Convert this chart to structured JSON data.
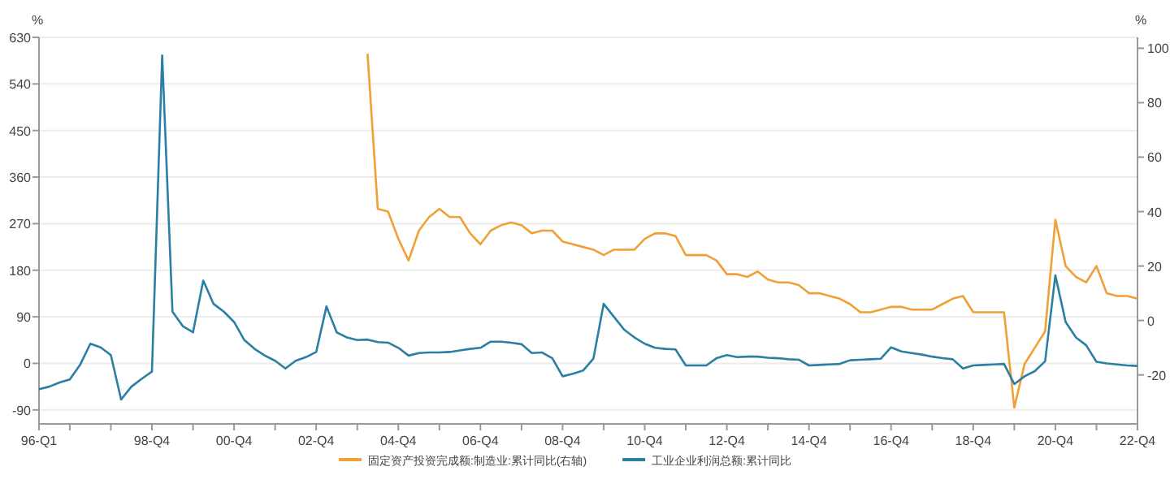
{
  "chart_data": {
    "type": "line",
    "categories": [
      "96-Q1",
      null,
      null,
      null,
      null,
      null,
      null,
      null,
      null,
      null,
      null,
      "98-Q4",
      null,
      null,
      null,
      null,
      null,
      null,
      null,
      "00-Q4",
      null,
      null,
      null,
      null,
      null,
      null,
      null,
      "02-Q4",
      null,
      null,
      null,
      null,
      null,
      null,
      null,
      "04-Q4",
      null,
      null,
      null,
      null,
      null,
      null,
      null,
      "06-Q4",
      null,
      null,
      null,
      null,
      null,
      null,
      null,
      "08-Q4",
      null,
      null,
      null,
      null,
      null,
      null,
      null,
      "10-Q4",
      null,
      null,
      null,
      null,
      null,
      null,
      null,
      "12-Q4",
      null,
      null,
      null,
      null,
      null,
      null,
      null,
      "14-Q4",
      null,
      null,
      null,
      null,
      null,
      null,
      null,
      "16-Q4",
      null,
      null,
      null,
      null,
      null,
      null,
      null,
      "18-Q4",
      null,
      null,
      null,
      null,
      null,
      null,
      null,
      "20-Q4",
      null,
      null,
      null,
      null,
      null,
      null,
      null,
      "22-Q4"
    ],
    "series": [
      {
        "name": "固定资产投资完成额:制造业:累计同比(右轴)",
        "color": "#f0a035",
        "axis": "y2",
        "values": [
          null,
          null,
          null,
          null,
          null,
          null,
          null,
          null,
          null,
          null,
          null,
          null,
          null,
          null,
          null,
          null,
          null,
          null,
          null,
          null,
          null,
          null,
          null,
          null,
          null,
          null,
          null,
          null,
          null,
          null,
          null,
          null,
          98,
          41,
          40,
          30,
          22,
          33,
          38,
          41,
          38,
          38,
          32,
          28,
          33,
          35,
          36,
          35,
          32,
          33,
          33,
          29,
          28,
          27,
          26,
          24,
          26,
          26,
          26,
          30,
          32,
          32,
          31,
          24,
          24,
          24,
          22,
          17,
          17,
          16,
          18,
          15,
          14,
          14,
          13,
          10,
          10,
          9,
          8,
          6,
          3,
          3,
          4,
          5,
          5,
          4,
          4,
          4,
          6,
          8,
          9,
          3,
          3,
          3,
          3,
          -32,
          -16,
          -10,
          -4,
          37,
          20,
          16,
          14,
          20,
          10,
          9,
          9,
          8
        ]
      },
      {
        "name": "工业企业利润总额:累计同比",
        "color": "#2b7fa3",
        "values": [
          -50,
          -45,
          -37,
          -31,
          -3,
          38,
          31,
          16,
          -70,
          -45,
          -30,
          -16,
          595,
          100,
          72,
          60,
          160,
          115,
          100,
          80,
          45,
          28,
          15,
          5,
          -10,
          5,
          12,
          22,
          110,
          60,
          50,
          45,
          46,
          41,
          40,
          30,
          15,
          20,
          21,
          21,
          22,
          25,
          28,
          30,
          42,
          42,
          40,
          37,
          20,
          21,
          10,
          -25,
          -20,
          -14,
          9,
          115,
          90,
          65,
          50,
          38,
          30,
          28,
          27,
          -4,
          -4,
          -4,
          10,
          16,
          12,
          13,
          13,
          11,
          10,
          8,
          7,
          -4,
          -3,
          -2,
          -1,
          6,
          7,
          8,
          9,
          31,
          23,
          20,
          17,
          13,
          10,
          8,
          -10,
          -4,
          -3,
          -2,
          -1,
          -40,
          -25,
          -15,
          4,
          170,
          80,
          50,
          35,
          3,
          0,
          -2,
          -4,
          -5
        ]
      }
    ],
    "ylabel": "%",
    "y2label": "%",
    "ylim": [
      -117,
      630
    ],
    "yticks": [
      -90,
      0,
      90,
      180,
      270,
      360,
      450,
      540,
      630
    ],
    "y2lim": [
      -38,
      104
    ],
    "y2ticks": [
      -20,
      0,
      20,
      40,
      60,
      80,
      100
    ],
    "grid": "y",
    "legend": "bottom",
    "marker": "none",
    "line_style": "solid"
  }
}
